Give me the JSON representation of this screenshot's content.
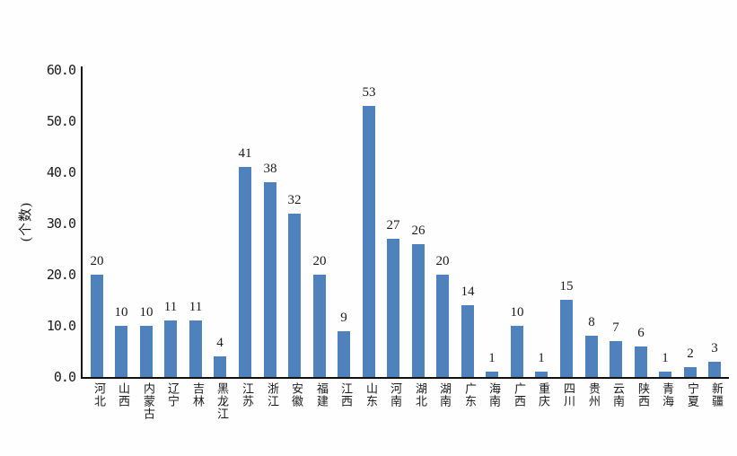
{
  "chart": {
    "bar_color": "#4f81bd",
    "axis_color": "#111111",
    "text_color": "#1a1a1a"
  },
  "chart_data": {
    "type": "bar",
    "title": "",
    "xlabel": "",
    "ylabel": "(个数)",
    "ylim": [
      0,
      60
    ],
    "ytick_step": 10,
    "ytick_decimals": 1,
    "grid": false,
    "legend": "none",
    "bar_value_labels_shown": true,
    "categories": [
      "河北",
      "山西",
      "内蒙古",
      "辽宁",
      "吉林",
      "黑龙江",
      "江苏",
      "浙江",
      "安徽",
      "福建",
      "江西",
      "山东",
      "河南",
      "湖北",
      "湖南",
      "广东",
      "海南",
      "广西",
      "重庆",
      "四川",
      "贵州",
      "云南",
      "陕西",
      "青海",
      "宁夏",
      "新疆"
    ],
    "values": [
      20,
      10,
      10,
      11,
      11,
      4,
      41,
      38,
      32,
      20,
      9,
      53,
      27,
      26,
      20,
      14,
      1,
      10,
      1,
      15,
      8,
      7,
      6,
      1,
      2,
      3
    ]
  }
}
